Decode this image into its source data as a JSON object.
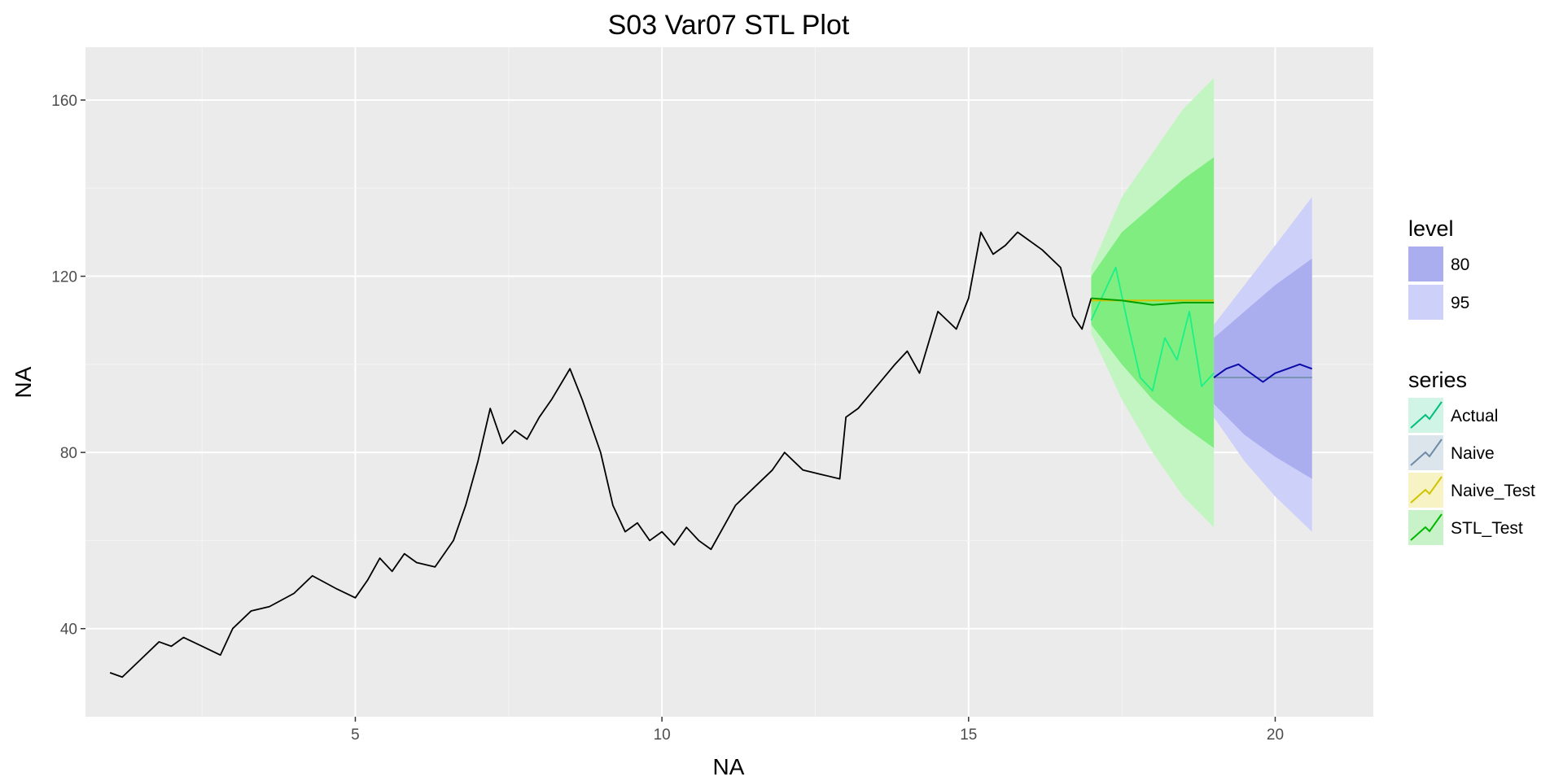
{
  "chart_data": {
    "type": "line",
    "title": "S03 Var07 STL Plot",
    "xlabel": "NA",
    "ylabel": "NA",
    "xlim": [
      0.6,
      21.6
    ],
    "ylim": [
      20,
      172
    ],
    "x_ticks": [
      5,
      10,
      15,
      20
    ],
    "y_ticks": [
      40,
      80,
      120,
      160
    ],
    "x_tick_labels": [
      "5",
      "10",
      "15",
      "20"
    ],
    "y_tick_labels": [
      "40",
      "80",
      "120",
      "160"
    ],
    "grid": true,
    "background": "#ebebeb",
    "legend_position": "right",
    "history": {
      "x": [
        1.0,
        1.2,
        1.5,
        1.8,
        2.0,
        2.2,
        2.5,
        2.8,
        3.0,
        3.3,
        3.6,
        4.0,
        4.3,
        4.7,
        5.0,
        5.2,
        5.4,
        5.6,
        5.8,
        6.0,
        6.3,
        6.6,
        6.8,
        7.0,
        7.2,
        7.4,
        7.6,
        7.8,
        8.0,
        8.2,
        8.5,
        8.7,
        9.0,
        9.2,
        9.4,
        9.6,
        9.8,
        10.0,
        10.2,
        10.4,
        10.6,
        10.8,
        11.0,
        11.2,
        11.5,
        11.8,
        12.0,
        12.3,
        12.6,
        12.9,
        13.0,
        13.2,
        13.5,
        13.8,
        14.0,
        14.2,
        14.5,
        14.8,
        15.0,
        15.2,
        15.4,
        15.6,
        15.8,
        16.0,
        16.2,
        16.5,
        16.7,
        16.85,
        17.0
      ],
      "y": [
        30,
        29,
        33,
        37,
        36,
        38,
        36,
        34,
        40,
        44,
        45,
        48,
        52,
        49,
        47,
        51,
        56,
        53,
        57,
        55,
        54,
        60,
        68,
        78,
        90,
        82,
        85,
        83,
        88,
        92,
        99,
        92,
        80,
        68,
        62,
        64,
        60,
        62,
        59,
        63,
        60,
        58,
        63,
        68,
        72,
        76,
        80,
        76,
        75,
        74,
        88,
        90,
        95,
        100,
        103,
        98,
        112,
        108,
        115,
        130,
        125,
        127,
        130,
        128,
        126,
        122,
        111,
        108,
        115
      ]
    },
    "actual": {
      "x": [
        17.0,
        17.2,
        17.4,
        17.6,
        17.8,
        18.0,
        18.2,
        18.4,
        18.6,
        18.8,
        19.0
      ],
      "y": [
        110,
        116,
        122,
        109,
        97,
        94,
        106,
        101,
        112,
        95,
        98
      ]
    },
    "stl_test": {
      "x": [
        17.0,
        17.5,
        18.0,
        18.5,
        19.0
      ],
      "y": [
        115,
        114.5,
        113.5,
        114,
        114
      ]
    },
    "naive_test": {
      "x": [
        17.0,
        19.0
      ],
      "y": [
        114.5,
        114.5
      ]
    },
    "naive_forecast": {
      "x": [
        19.0,
        20.6
      ],
      "y": [
        97,
        97
      ]
    },
    "stl_forecast": {
      "x": [
        19.0,
        19.2,
        19.4,
        19.6,
        19.8,
        20.0,
        20.2,
        20.4,
        20.6
      ],
      "y": [
        97,
        99,
        100,
        98,
        96,
        98,
        99,
        100,
        99
      ]
    },
    "test_bands": {
      "x": [
        17.0,
        17.5,
        18.0,
        18.5,
        19.0
      ],
      "lo95": [
        107,
        92,
        80,
        70,
        63
      ],
      "hi95": [
        122,
        138,
        148,
        158,
        165
      ],
      "lo80": [
        109,
        100,
        92,
        86,
        81
      ],
      "hi80": [
        120,
        130,
        136,
        142,
        147
      ]
    },
    "forecast_bands": {
      "x": [
        19.0,
        19.5,
        20.0,
        20.6
      ],
      "lo95": [
        88,
        78,
        70,
        62
      ],
      "hi95": [
        109,
        118,
        127,
        138
      ],
      "lo80": [
        91,
        84,
        79,
        74
      ],
      "hi80": [
        106,
        112,
        118,
        124
      ]
    },
    "legend": {
      "level": {
        "title": "level",
        "items": [
          {
            "label": "80",
            "color": "#aaaeee"
          },
          {
            "label": "95",
            "color": "#cdd0f9"
          }
        ]
      },
      "series": {
        "title": "series",
        "items": [
          {
            "label": "Actual",
            "color": "#00bf7d",
            "fill": "#d0f4e6"
          },
          {
            "label": "Naive",
            "color": "#6e8ba6",
            "fill": "#dce4ec"
          },
          {
            "label": "Naive_Test",
            "color": "#cfc400",
            "fill": "#f7f3c4"
          },
          {
            "label": "STL_Test",
            "color": "#00b800",
            "fill": "#c8f2c8"
          }
        ]
      }
    },
    "colors": {
      "history": "#000000",
      "actual": "#1af089",
      "stl_test": "#00a000",
      "naive_test": "#cfc400",
      "stl_forecast": "#0a0aa8",
      "naive_forecast": "#6e8ba6",
      "test_band95": "#c3f5c3",
      "test_band80": "#7fed7f",
      "forecast_band95": "#cdd0f9",
      "forecast_band80": "#aaaeee"
    }
  }
}
